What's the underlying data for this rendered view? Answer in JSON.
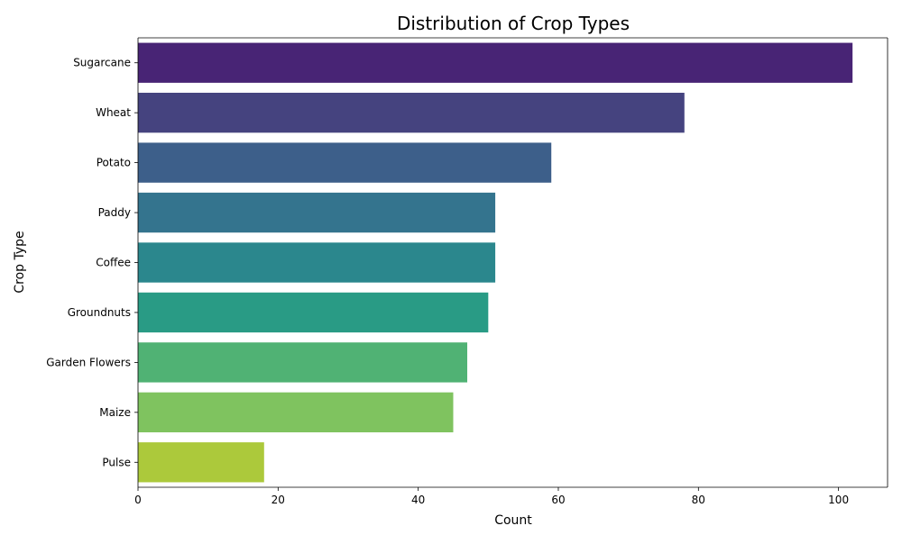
{
  "chart_data": {
    "type": "bar",
    "orientation": "horizontal",
    "title": "Distribution of Crop Types",
    "xlabel": "Count",
    "ylabel": "Crop Type",
    "xlim": [
      0,
      107
    ],
    "xticks": [
      0,
      20,
      40,
      60,
      80,
      100
    ],
    "grid": false,
    "categories": [
      "Sugarcane",
      "Wheat",
      "Potato",
      "Paddy",
      "Coffee",
      "Groundnuts",
      "Garden Flowers",
      "Maize",
      "Pulse"
    ],
    "values": [
      102,
      78,
      59,
      51,
      51,
      50,
      47,
      45,
      18
    ],
    "colors": [
      "#482475",
      "#45437f",
      "#3d5f8a",
      "#34748e",
      "#2b878d",
      "#299b85",
      "#50b274",
      "#7fc35f",
      "#acc93b"
    ]
  }
}
